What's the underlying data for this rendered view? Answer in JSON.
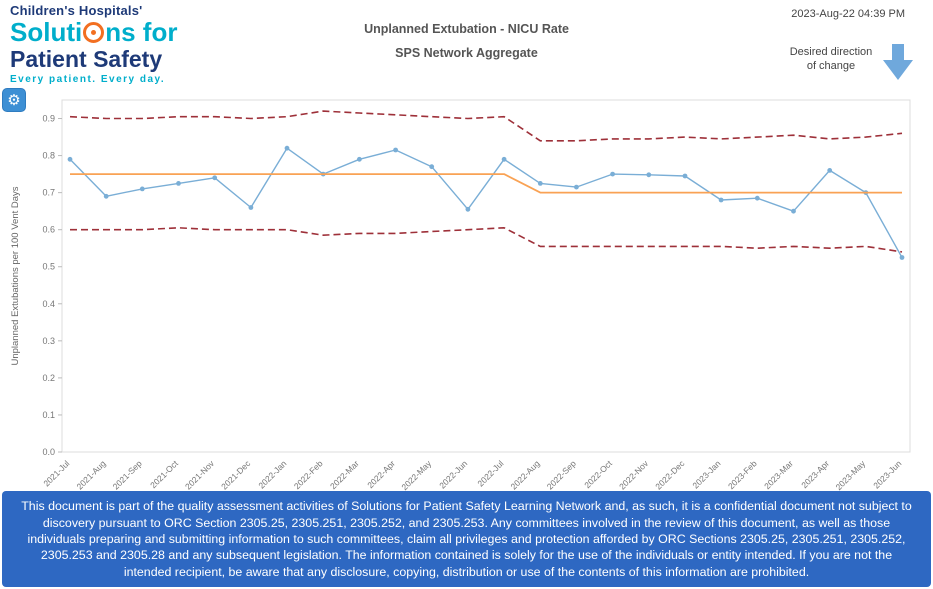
{
  "logo": {
    "line1": "Children's Hospitals'",
    "line2_pre": "Soluti",
    "line2_post": "ns for",
    "line3": "Patient Safety",
    "tagline": "Every patient. Every day."
  },
  "header": {
    "title": "Unplanned Extubation - NICU Rate",
    "subtitle": "SPS Network Aggregate",
    "timestamp": "2023-Aug-22 04:39 PM",
    "desired_direction_label": "Desired direction of change"
  },
  "icons": {
    "gear": "⚙",
    "arrow_color": "#6fa8dc"
  },
  "footer": {
    "disclaimer": "This document is part of the quality assessment activities of Solutions for Patient Safety Learning Network and, as such, it is a confidential document not subject to discovery pursuant to ORC Section 2305.25, 2305.251, 2305.252, and 2305.253. Any committees involved in the review of this document, as well as those individuals preparing and submitting information to such committees, claim all privileges and protection afforded by ORC Sections 2305.25, 2305.251, 2305.252, 2305.253 and 2305.28 and any subsequent legislation. The information contained is solely for the use of the individuals or entity intended. If you are not the intended recipient, be aware that any disclosure, copying, distribution or use of the contents of this information are prohibited."
  },
  "chart_data": {
    "type": "line",
    "title": "Unplanned Extubation - NICU Rate",
    "subtitle": "SPS Network Aggregate",
    "ylabel": "Unplanned Extubations per 100 Vent Days",
    "xlabel": "",
    "ylim": [
      0,
      0.95
    ],
    "yticks": [
      0.0,
      0.1,
      0.2,
      0.3,
      0.4,
      0.5,
      0.6,
      0.7,
      0.8,
      0.9
    ],
    "grid": false,
    "legend": "none",
    "x": [
      "2021-Jul",
      "2021-Aug",
      "2021-Sep",
      "2021-Oct",
      "2021-Nov",
      "2021-Dec",
      "2022-Jan",
      "2022-Feb",
      "2022-Mar",
      "2022-Apr",
      "2022-May",
      "2022-Jun",
      "2022-Jul",
      "2022-Aug",
      "2022-Sep",
      "2022-Oct",
      "2022-Nov",
      "2022-Dec",
      "2023-Jan",
      "2023-Feb",
      "2023-Mar",
      "2023-Apr",
      "2023-May",
      "2023-Jun"
    ],
    "series": [
      {
        "name": "NICU Rate",
        "color": "#7aaed6",
        "style": "solid",
        "width": 1.4,
        "markers": true,
        "values": [
          0.79,
          0.69,
          0.71,
          0.725,
          0.74,
          0.66,
          0.82,
          0.75,
          0.79,
          0.815,
          0.77,
          0.655,
          0.79,
          0.725,
          0.715,
          0.75,
          0.748,
          0.745,
          0.68,
          0.685,
          0.65,
          0.76,
          0.7,
          0.525
        ]
      },
      {
        "name": "Centerline",
        "color": "#f9a254",
        "style": "solid",
        "width": 1.8,
        "markers": false,
        "values": [
          0.75,
          0.75,
          0.75,
          0.75,
          0.75,
          0.75,
          0.75,
          0.75,
          0.75,
          0.75,
          0.75,
          0.75,
          0.75,
          0.7,
          0.7,
          0.7,
          0.7,
          0.7,
          0.7,
          0.7,
          0.7,
          0.7,
          0.7,
          0.7
        ]
      },
      {
        "name": "Upper Control Limit",
        "color": "#9e3039",
        "style": "dashed",
        "width": 1.6,
        "markers": false,
        "values": [
          0.905,
          0.9,
          0.9,
          0.905,
          0.905,
          0.9,
          0.905,
          0.92,
          0.915,
          0.91,
          0.905,
          0.9,
          0.905,
          0.84,
          0.84,
          0.845,
          0.845,
          0.85,
          0.845,
          0.85,
          0.855,
          0.845,
          0.85,
          0.86
        ]
      },
      {
        "name": "Lower Control Limit",
        "color": "#9e3039",
        "style": "dashed",
        "width": 1.6,
        "markers": false,
        "values": [
          0.6,
          0.6,
          0.6,
          0.605,
          0.6,
          0.6,
          0.6,
          0.585,
          0.59,
          0.59,
          0.595,
          0.6,
          0.605,
          0.555,
          0.555,
          0.555,
          0.555,
          0.555,
          0.555,
          0.55,
          0.555,
          0.55,
          0.555,
          0.54
        ]
      }
    ]
  }
}
